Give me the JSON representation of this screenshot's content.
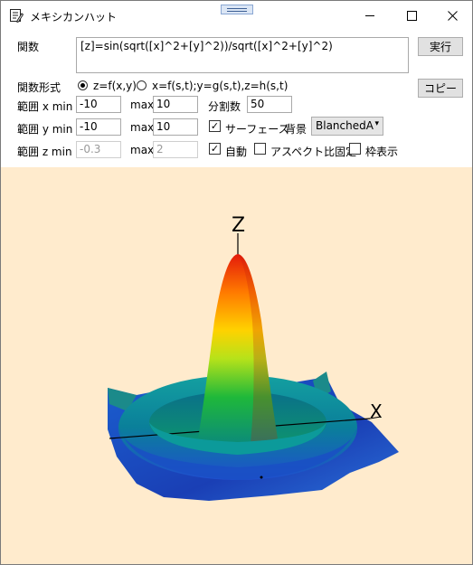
{
  "window": {
    "title": "メキシカンハット"
  },
  "form": {
    "function_label": "関数",
    "function_value": "[z]=sin(sqrt([x]^2+[y]^2))/sqrt([x]^2+[y]^2)",
    "run_button": "実行",
    "copy_button": "コピー",
    "function_type_label": "関数形式",
    "function_type_options": [
      "z=f(x,y)",
      "x=f(s,t);y=g(s,t),z=h(s,t)"
    ],
    "function_type_selected": "z=f(x,y)",
    "x_range_label": "範囲 x min",
    "x_min": "-10",
    "x_max_label": "max",
    "x_max": "10",
    "divisions_label": "分割数",
    "divisions": "50",
    "y_range_label": "範囲 y min",
    "y_min": "-10",
    "y_max_label": "max",
    "y_max": "10",
    "surface_label": "サーフェース",
    "surface_checked": true,
    "background_label": "背景",
    "background_value": "BlanchedA",
    "z_range_label": "範囲 z min",
    "z_min": "-0.3",
    "z_max_label": "max",
    "z_max": "2",
    "auto_label": "自動",
    "auto_checked": true,
    "aspect_label": "アスペクト比固定",
    "aspect_checked": false,
    "frame_label": "枠表示",
    "frame_checked": false
  },
  "plot": {
    "background_color": "#ffebcd",
    "axis_labels": {
      "z": "Z",
      "x": "X"
    },
    "colormap": [
      "#1a3fb5",
      "#0b8a7a",
      "#27c23a",
      "#d9e816",
      "#ff8a00",
      "#e81a0a"
    ]
  }
}
